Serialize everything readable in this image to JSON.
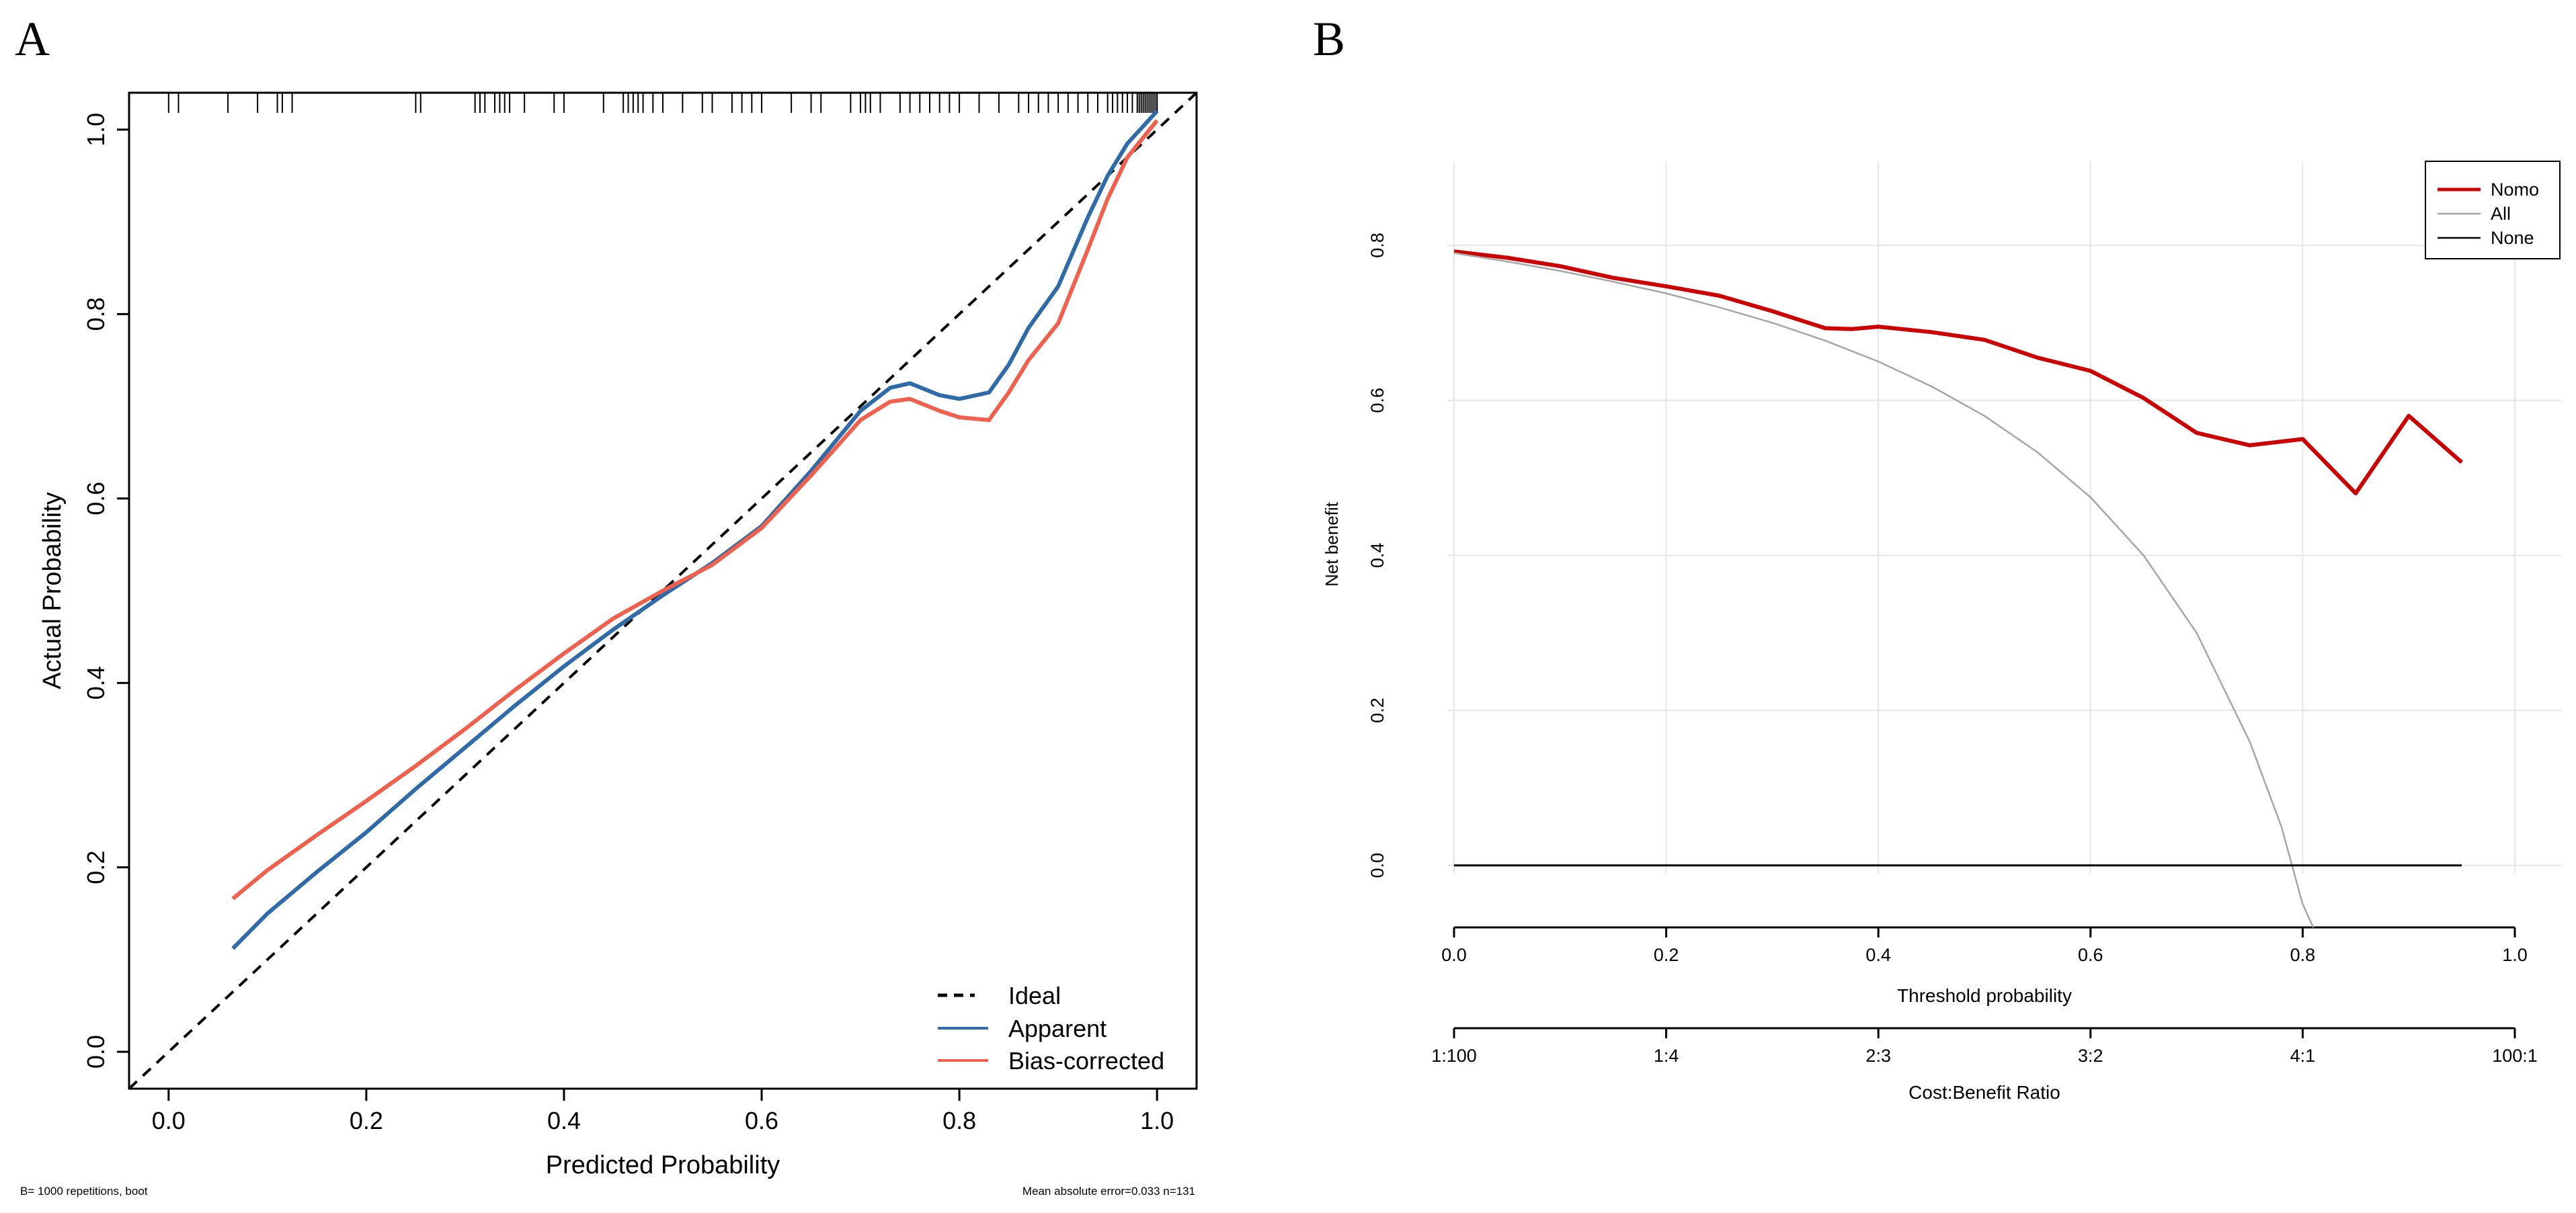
{
  "colors": {
    "apparent": "#2E6BA8",
    "bias_corrected": "#F0604D",
    "nomo": "#CC0000",
    "all": "#A6A6A6",
    "none": "#000000",
    "ideal": "#000000"
  },
  "chart_data": [
    {
      "panel": "A",
      "type": "line",
      "xlabel": "Predicted Probability",
      "ylabel": "Actual Probability",
      "xlim": [
        -0.04,
        1.04
      ],
      "ylim": [
        -0.04,
        1.04
      ],
      "x_ticks": [
        0.0,
        0.2,
        0.4,
        0.6,
        0.8,
        1.0
      ],
      "x_tick_labels": [
        "0.0",
        "0.2",
        "0.4",
        "0.6",
        "0.8",
        "1.0"
      ],
      "y_ticks": [
        0.0,
        0.2,
        0.4,
        0.6,
        0.8,
        1.0
      ],
      "y_tick_labels": [
        "0.0",
        "0.2",
        "0.4",
        "0.6",
        "0.8",
        "1.0"
      ],
      "legend": {
        "position": "bottom-right",
        "items": [
          "Ideal",
          "Apparent",
          "Bias-corrected"
        ]
      },
      "series": [
        {
          "name": "Ideal",
          "style": "dashed",
          "x": [
            -0.04,
            1.04
          ],
          "y": [
            -0.04,
            1.04
          ]
        },
        {
          "name": "Apparent",
          "x": [
            0.065,
            0.1,
            0.15,
            0.2,
            0.25,
            0.3,
            0.35,
            0.4,
            0.45,
            0.5,
            0.55,
            0.6,
            0.65,
            0.7,
            0.73,
            0.75,
            0.78,
            0.8,
            0.83,
            0.85,
            0.87,
            0.9,
            0.93,
            0.95,
            0.97,
            1.0
          ],
          "y": [
            0.112,
            0.15,
            0.195,
            0.238,
            0.285,
            0.33,
            0.375,
            0.418,
            0.458,
            0.495,
            0.53,
            0.57,
            0.63,
            0.695,
            0.72,
            0.725,
            0.712,
            0.708,
            0.715,
            0.745,
            0.785,
            0.83,
            0.905,
            0.95,
            0.985,
            1.02
          ]
        },
        {
          "name": "Bias-corrected",
          "x": [
            0.065,
            0.1,
            0.15,
            0.2,
            0.25,
            0.3,
            0.35,
            0.4,
            0.45,
            0.5,
            0.55,
            0.6,
            0.65,
            0.7,
            0.73,
            0.75,
            0.78,
            0.8,
            0.83,
            0.85,
            0.87,
            0.9,
            0.93,
            0.95,
            0.97,
            1.0
          ],
          "y": [
            0.166,
            0.197,
            0.235,
            0.272,
            0.31,
            0.35,
            0.392,
            0.432,
            0.47,
            0.5,
            0.528,
            0.568,
            0.625,
            0.685,
            0.705,
            0.708,
            0.695,
            0.688,
            0.685,
            0.715,
            0.75,
            0.79,
            0.87,
            0.925,
            0.97,
            1.01
          ]
        }
      ],
      "rug_x": [
        0.0,
        0.01,
        0.06,
        0.09,
        0.11,
        0.115,
        0.125,
        0.25,
        0.255,
        0.31,
        0.315,
        0.32,
        0.33,
        0.335,
        0.34,
        0.345,
        0.36,
        0.39,
        0.4,
        0.44,
        0.46,
        0.465,
        0.47,
        0.475,
        0.48,
        0.49,
        0.5,
        0.52,
        0.54,
        0.55,
        0.57,
        0.58,
        0.59,
        0.6,
        0.63,
        0.65,
        0.66,
        0.69,
        0.7,
        0.705,
        0.71,
        0.72,
        0.74,
        0.75,
        0.76,
        0.77,
        0.78,
        0.79,
        0.8,
        0.82,
        0.84,
        0.86,
        0.87,
        0.88,
        0.89,
        0.9,
        0.91,
        0.92,
        0.93,
        0.94,
        0.95,
        0.955,
        0.96,
        0.965,
        0.97,
        0.975,
        0.98,
        0.982,
        0.984,
        0.986,
        0.988,
        0.99,
        0.992,
        0.994,
        0.996,
        0.998,
        1.0,
        1.0
      ],
      "footnote_left": "B= 1000 repetitions, boot",
      "footnote_right": "Mean absolute error=0.033 n=131"
    },
    {
      "panel": "B",
      "type": "line",
      "xlabel": "Threshold probability",
      "ylabel": "Net benefit",
      "xlim": [
        0.0,
        1.0
      ],
      "ylim": [
        -0.08,
        0.8
      ],
      "x_ticks": [
        0.0,
        0.2,
        0.4,
        0.6,
        0.8,
        1.0
      ],
      "x_tick_labels": [
        "0.0",
        "0.2",
        "0.4",
        "0.6",
        "0.8",
        "1.0"
      ],
      "y_ticks": [
        0.0,
        0.2,
        0.4,
        0.6,
        0.8
      ],
      "y_tick_labels": [
        "0.0",
        "0.2",
        "0.4",
        "0.6",
        "0.8"
      ],
      "cost_benefit_label": "Cost:Benefit Ratio",
      "cost_benefit_ticks": [
        "1:100",
        "1:4",
        "2:3",
        "3:2",
        "4:1",
        "100:1"
      ],
      "legend": {
        "position": "top-right",
        "items": [
          "Nomo",
          "All",
          "None"
        ]
      },
      "series": [
        {
          "name": "Nomo",
          "x": [
            0.0,
            0.05,
            0.1,
            0.15,
            0.2,
            0.25,
            0.3,
            0.35,
            0.375,
            0.4,
            0.45,
            0.5,
            0.55,
            0.6,
            0.65,
            0.7,
            0.75,
            0.8,
            0.85,
            0.9,
            0.95
          ],
          "y": [
            0.792,
            0.784,
            0.773,
            0.758,
            0.747,
            0.735,
            0.715,
            0.693,
            0.692,
            0.695,
            0.688,
            0.678,
            0.655,
            0.638,
            0.603,
            0.558,
            0.542,
            0.55,
            0.48,
            0.58,
            0.52
          ]
        },
        {
          "name": "All",
          "x": [
            0.0,
            0.05,
            0.1,
            0.15,
            0.2,
            0.25,
            0.3,
            0.35,
            0.4,
            0.45,
            0.5,
            0.55,
            0.6,
            0.65,
            0.7,
            0.75,
            0.78,
            0.8,
            0.81
          ],
          "y": [
            0.79,
            0.779,
            0.767,
            0.753,
            0.738,
            0.72,
            0.7,
            0.677,
            0.65,
            0.618,
            0.58,
            0.533,
            0.475,
            0.4,
            0.3,
            0.16,
            0.05,
            -0.05,
            -0.08
          ]
        },
        {
          "name": "None",
          "x": [
            0.0,
            0.95
          ],
          "y": [
            0.0,
            0.0
          ]
        }
      ]
    }
  ]
}
